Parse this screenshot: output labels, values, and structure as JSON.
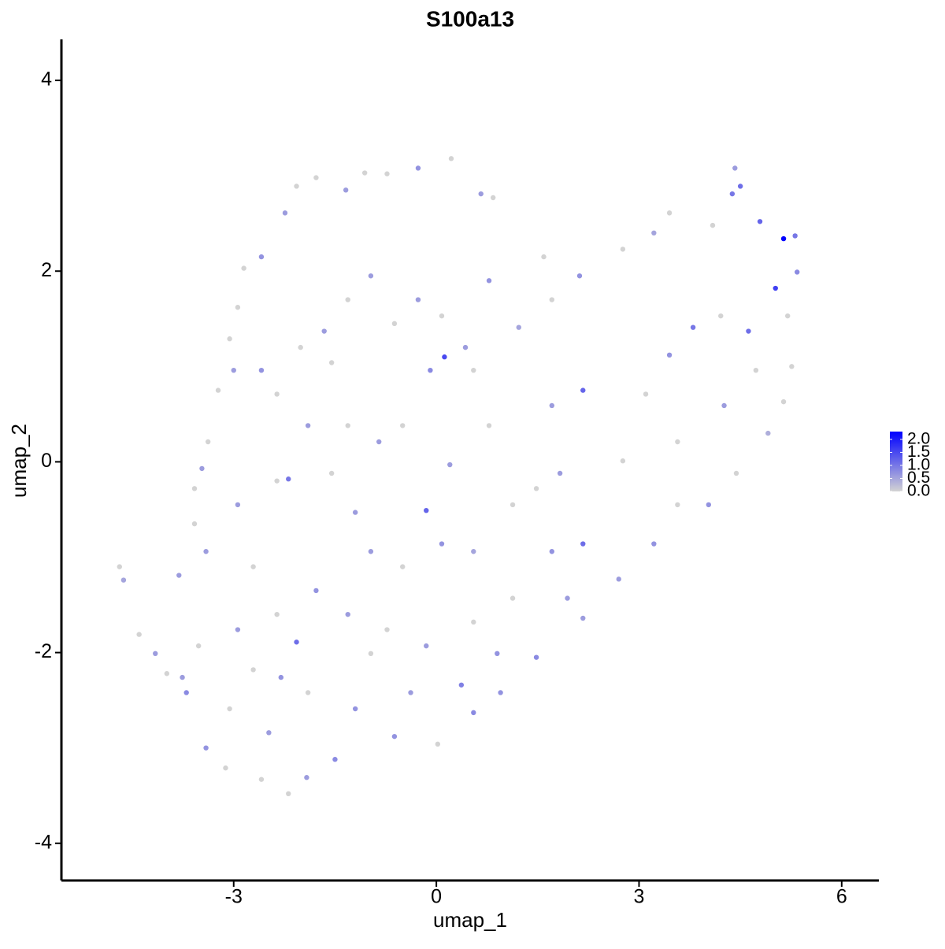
{
  "chart_data": {
    "type": "scatter",
    "title": "S100a13",
    "x_label": "umap_1",
    "y_label": "umap_2",
    "x": [
      -4.69,
      -4.63,
      -4.4,
      -4.16,
      -3.99,
      -3.7,
      -3.41,
      -3.12,
      -2.59,
      -2.19,
      -1.92,
      -1.5,
      -0.62,
      0.02,
      0.55,
      0.95,
      1.48,
      2.17,
      2.7,
      3.22,
      3.57,
      4.03,
      4.44,
      4.91,
      5.14,
      5.26,
      5.2,
      5.34,
      5.14,
      5.31,
      5.02,
      4.79,
      4.5,
      4.42,
      4.38,
      4.09,
      3.45,
      3.22,
      2.76,
      2.12,
      1.71,
      1.59,
      1.22,
      0.78,
      0.66,
      0.84,
      0.22,
      -0.27,
      -0.73,
      -1.06,
      -1.34,
      -1.78,
      -2.07,
      -2.24,
      -2.59,
      -2.85,
      -2.94,
      -3.06,
      -3.0,
      -3.23,
      -3.38,
      -3.58,
      -3.47,
      -3.58,
      -3.41,
      -3.81,
      -2.19,
      -0.09,
      0.12,
      -0.15,
      -1.2,
      -1.78,
      -2.07,
      -2.3,
      -2.71,
      -2.94,
      -1.9,
      -1.2,
      -0.38,
      0.37,
      0.9,
      1.13,
      1.71,
      2.17,
      1.48,
      0.78,
      1.71,
      2.17,
      3.1,
      3.45,
      3.8,
      4.21,
      4.62,
      4.73,
      4.26,
      3.57,
      2.76,
      1.83,
      1.13,
      0.55,
      0.08,
      -0.5,
      -0.97,
      -1.55,
      -1.9,
      -2.36,
      -2.59,
      -2.01,
      -1.66,
      -1.31,
      -0.97,
      -0.62,
      -0.27,
      0.08,
      0.43,
      0.55,
      -0.85,
      -1.31,
      -0.5,
      0.2,
      -1.55,
      -2.36,
      -2.94,
      -2.71,
      -2.36,
      -1.31,
      -0.73,
      -0.15,
      0.55,
      1.94,
      -0.97,
      -3.52,
      -3.76,
      -3.06,
      -2.48
    ],
    "values": [
      -1.1,
      -1.24,
      -1.81,
      -2.01,
      -2.22,
      -2.42,
      -3.0,
      -3.21,
      -3.33,
      -3.48,
      -3.31,
      -3.12,
      -2.88,
      -2.96,
      -2.63,
      -2.42,
      -2.05,
      -1.64,
      -1.23,
      -0.86,
      -0.45,
      -0.45,
      -0.12,
      0.3,
      0.63,
      1.0,
      1.53,
      1.99,
      2.34,
      2.37,
      1.82,
      2.52,
      2.89,
      3.08,
      2.81,
      2.48,
      2.61,
      2.4,
      2.23,
      1.95,
      1.7,
      2.15,
      1.41,
      1.9,
      2.81,
      2.77,
      3.18,
      3.08,
      3.02,
      3.03,
      2.85,
      2.98,
      2.89,
      2.61,
      2.15,
      2.03,
      1.62,
      1.29,
      0.96,
      0.75,
      0.21,
      -0.28,
      -0.07,
      -0.65,
      -0.94,
      -1.19,
      -0.18,
      0.96,
      1.1,
      -0.51,
      -0.53,
      -1.35,
      -1.89,
      -2.26,
      -2.18,
      -1.76,
      -2.42,
      -2.59,
      -2.42,
      -2.34,
      -2.01,
      -1.43,
      -0.94,
      -0.86,
      -0.28,
      0.38,
      0.59,
      0.75,
      0.71,
      1.12,
      1.41,
      1.53,
      1.37,
      0.96,
      0.59,
      0.21,
      0.01,
      -0.12,
      -0.45,
      -0.94,
      -0.86,
      -1.1,
      -0.94,
      -0.12,
      0.38,
      0.71,
      0.96,
      1.2,
      1.37,
      1.7,
      1.95,
      1.45,
      1.7,
      1.53,
      1.2,
      0.96,
      0.21,
      0.38,
      0.38,
      -0.03,
      1.04,
      -0.2,
      -0.45,
      -1.1,
      -1.6,
      -1.6,
      -1.76,
      -1.93,
      -1.68,
      -1.43,
      -2.01,
      -1.93,
      -2.26,
      -2.59,
      -2.84
    ],
    "color_values": [
      0,
      0.5,
      0,
      0.6,
      0,
      0.8,
      0.7,
      0,
      0,
      0,
      0.6,
      0.8,
      0.7,
      0,
      0.8,
      0.7,
      0.8,
      0.6,
      0.6,
      0.7,
      0,
      0.7,
      0,
      0.4,
      0,
      0,
      0,
      0.8,
      2.3,
      1.0,
      1.6,
      1.2,
      1.1,
      0.6,
      1.0,
      0,
      0,
      0.5,
      0,
      0.7,
      0,
      0,
      0.5,
      0.7,
      0.6,
      0,
      0,
      0.7,
      0,
      0,
      0.6,
      0,
      0,
      0.6,
      0.7,
      0,
      0,
      0,
      0.6,
      0,
      0,
      0,
      0.6,
      0,
      0.6,
      0.6,
      1.0,
      0.8,
      1.5,
      1.2,
      0.6,
      0.7,
      1.1,
      0.7,
      0,
      0.6,
      0,
      0.7,
      0.6,
      0.9,
      0.7,
      0,
      0.7,
      1.1,
      0,
      0,
      0.6,
      1.2,
      0,
      0.7,
      1.0,
      0,
      1.1,
      0,
      0.6,
      0,
      0,
      0.6,
      0,
      0.5,
      0.7,
      0,
      0.6,
      0,
      0.6,
      0,
      0.7,
      0,
      0.6,
      0,
      0.6,
      0,
      0.6,
      0,
      0.6,
      0,
      0.6,
      0,
      0,
      0.6,
      0,
      0,
      0.6,
      0,
      0,
      0.6,
      0,
      0.6,
      0,
      0.6,
      0,
      0,
      0.6,
      0,
      0.6
    ],
    "xlim": [
      -5.55,
      6.55
    ],
    "ylim": [
      -4.39,
      4.43
    ],
    "xticks": [
      -3,
      0,
      3,
      6
    ],
    "yticks": [
      -4,
      -2,
      0,
      2,
      4
    ],
    "colorbar": {
      "lim": [
        0,
        2.3
      ],
      "low": "#d3d3d3",
      "high": "#0000ff",
      "ticks": [
        {
          "value": 0,
          "label": "0.0"
        },
        {
          "value": 0.5,
          "label": "0.5"
        },
        {
          "value": 1,
          "label": "1.0"
        },
        {
          "value": 1.5,
          "label": "1.5"
        },
        {
          "value": 2,
          "label": "2.0"
        }
      ]
    }
  }
}
